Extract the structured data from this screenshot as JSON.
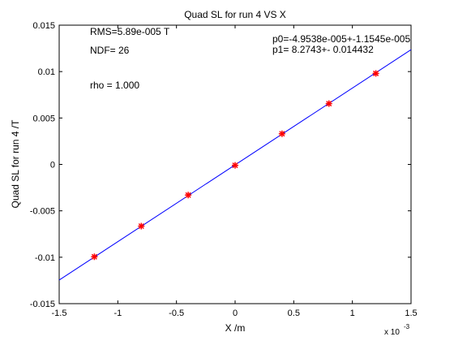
{
  "chart_data": {
    "type": "scatter",
    "title": "Quad SL for run 4 VS X",
    "xlabel": "X /m",
    "ylabel": "Quad SL for run 4 /T",
    "x_multiplier": {
      "base": "x 10",
      "exponent": "-3"
    },
    "xlim": [
      -1.5,
      1.5
    ],
    "ylim": [
      -0.015,
      0.015
    ],
    "x_ticks": [
      -1.5,
      -1,
      -0.5,
      0,
      0.5,
      1,
      1.5
    ],
    "x_tick_labels": [
      "-1.5",
      "-1",
      "-0.5",
      "0",
      "0.5",
      "1",
      "1.5"
    ],
    "y_ticks": [
      -0.015,
      -0.01,
      -0.005,
      0,
      0.005,
      0.01,
      0.015
    ],
    "y_tick_labels": [
      "-0.015",
      "-0.01",
      "-0.005",
      "0",
      "0.005",
      "0.01",
      "0.015"
    ],
    "grid": false,
    "series": [
      {
        "marker": "asterisk",
        "color": "#ff0000",
        "x": [
          -1.2,
          -0.8,
          -0.4,
          0.0,
          0.4,
          0.8,
          1.2
        ],
        "y": [
          -0.00995,
          -0.00665,
          -0.0033,
          -0.0001,
          0.0033,
          0.00655,
          0.0098
        ]
      }
    ],
    "fit_line": {
      "color": "#0000ff",
      "intercept": -4.9538e-05,
      "slope": 8.2743
    },
    "annotations": {
      "rms": "RMS=5.89e-005 T",
      "ndf": "NDF=   26",
      "rho": "rho    =  1.000",
      "p0": "p0=-4.9538e-005+-1.1545e-005",
      "p1": "p1=   8.2743+- 0.014432"
    }
  }
}
